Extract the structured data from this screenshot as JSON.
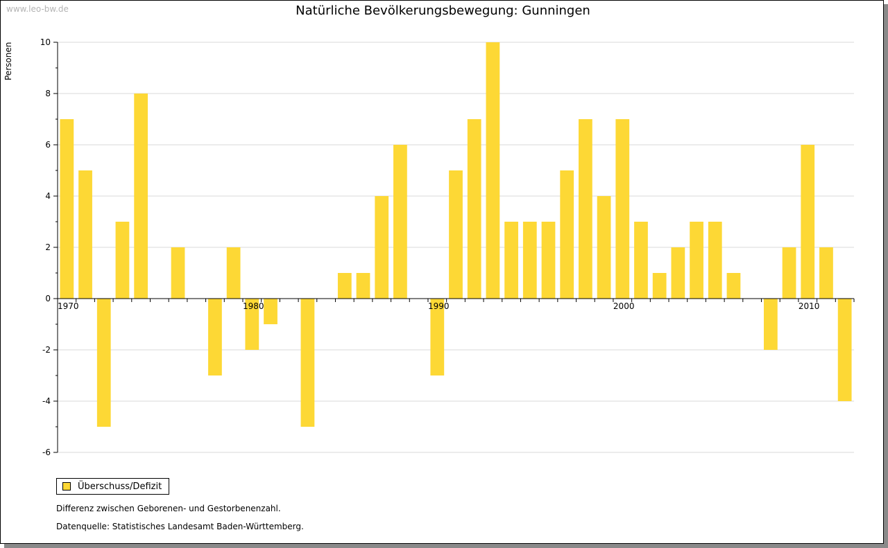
{
  "watermark": "www.leo-bw.de",
  "chart_data": {
    "type": "bar",
    "title": "Natürliche Bevölkerungsbewegung: Gunningen",
    "xlabel": "",
    "ylabel": "Personen",
    "x": [
      1970,
      1971,
      1972,
      1973,
      1974,
      1975,
      1976,
      1977,
      1978,
      1979,
      1980,
      1981,
      1982,
      1983,
      1984,
      1985,
      1986,
      1987,
      1988,
      1989,
      1990,
      1991,
      1992,
      1993,
      1994,
      1995,
      1996,
      1997,
      1998,
      1999,
      2000,
      2001,
      2002,
      2003,
      2004,
      2005,
      2006,
      2007,
      2008,
      2009,
      2010,
      2011,
      2012
    ],
    "series": [
      {
        "name": "Überschuss/Defizit",
        "color": "#fdd835",
        "values": [
          7,
          5,
          -5,
          3,
          8,
          0,
          2,
          0,
          -3,
          2,
          -2,
          -1,
          0,
          -5,
          0,
          1,
          1,
          4,
          6,
          0,
          -3,
          5,
          7,
          10,
          3,
          3,
          3,
          5,
          7,
          4,
          7,
          3,
          1,
          2,
          3,
          3,
          1,
          0,
          -2,
          2,
          6,
          2,
          -4
        ]
      }
    ],
    "xticks": [
      "1970",
      "1980",
      "1990",
      "2000",
      "2010"
    ],
    "yticks": [
      -6,
      -4,
      -2,
      0,
      2,
      4,
      6,
      8,
      10
    ],
    "ylim": [
      -6,
      10
    ],
    "grid": true,
    "legend": "bottom-left"
  },
  "notes": {
    "line1": "Differenz zwischen Geborenen- und Gestorbenenzahl.",
    "line2": "Datenquelle: Statistisches Landesamt Baden-Württemberg."
  }
}
